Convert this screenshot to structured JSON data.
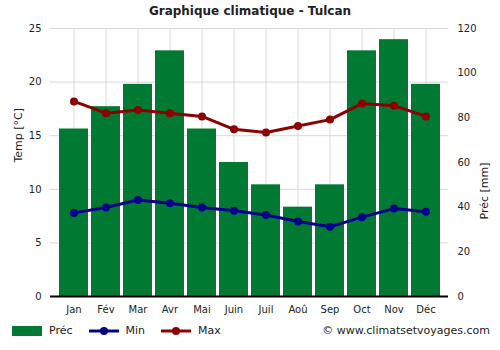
{
  "chart_data": {
    "type": "bar",
    "title": "Graphique climatique - Tulcan",
    "categories": [
      "Jan",
      "Fév",
      "Mar",
      "Avr",
      "Mai",
      "Juin",
      "Juil",
      "Aoû",
      "Sep",
      "Oct",
      "Nov",
      "Déc"
    ],
    "series": [
      {
        "name": "Préc",
        "type": "bar",
        "axis": "y2",
        "color": "#007a33",
        "values": [
          75,
          85,
          95,
          110,
          75,
          60,
          50,
          40,
          50,
          110,
          115,
          95
        ]
      },
      {
        "name": "Min",
        "type": "line",
        "color": "#00008b",
        "marker": "circle",
        "values": [
          7.8,
          8.3,
          9.0,
          8.7,
          8.3,
          8.0,
          7.6,
          7.0,
          6.5,
          7.4,
          8.2,
          7.9
        ]
      },
      {
        "name": "Max",
        "type": "line",
        "color": "#8b0000",
        "marker": "circle",
        "values": [
          18.2,
          17.1,
          17.4,
          17.1,
          16.8,
          15.6,
          15.3,
          15.9,
          16.5,
          18.0,
          17.8,
          16.8
        ]
      }
    ],
    "ylabel": "Temp [°C]",
    "y2label": "Préc [mm]",
    "ylim": [
      0,
      25
    ],
    "yticks": [
      0,
      5,
      10,
      15,
      20,
      25
    ],
    "y2lim": [
      0,
      120
    ],
    "y2ticks": [
      0,
      20,
      40,
      60,
      80,
      100,
      120
    ],
    "grid": true,
    "legend": "bottom",
    "annotations": [
      "© www.climatsetvoyages.com"
    ]
  }
}
